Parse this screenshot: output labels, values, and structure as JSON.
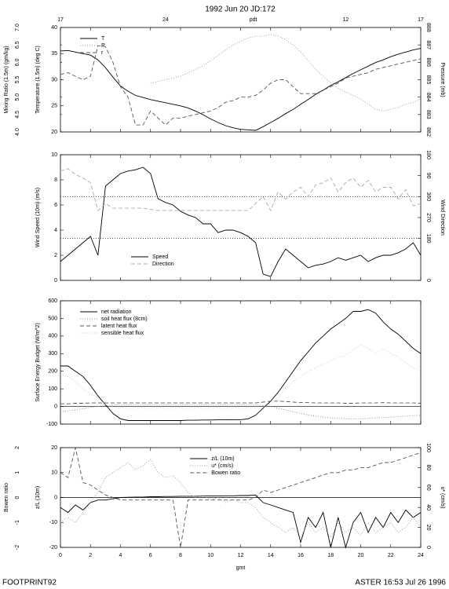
{
  "title": "1992 Jun 20 JD:172",
  "footer_left": "FOOTPRINT92",
  "footer_right": "ASTER 16:53 Jul 26 1996",
  "chart_data": [
    {
      "type": "line",
      "x": [
        0,
        0.5,
        1,
        1.5,
        2,
        2.5,
        3,
        3.5,
        4,
        4.5,
        5,
        5.5,
        6,
        6.5,
        7,
        7.5,
        8,
        8.5,
        9,
        9.5,
        10,
        10.5,
        11,
        11.5,
        12,
        12.5,
        13,
        13.5,
        14,
        14.5,
        15,
        15.5,
        16,
        16.5,
        17,
        17.5,
        18,
        18.5,
        19,
        19.5,
        20,
        20.5,
        21,
        21.5,
        22,
        22.5,
        23,
        23.5,
        24
      ],
      "xlim": [
        0,
        24
      ],
      "xticks": [
        0,
        2,
        4,
        6,
        8,
        10,
        12,
        14,
        16,
        18,
        20,
        22,
        24
      ],
      "x2label": "pdt",
      "x2ticks": [
        {
          "value": 0,
          "label": "17"
        },
        {
          "value": 7,
          "label": "24"
        },
        {
          "value": 19,
          "label": "12"
        },
        {
          "value": 24,
          "label": "17"
        }
      ],
      "ylabel": "Temperature (1.5m) (deg C)",
      "ylim": [
        20,
        40
      ],
      "yticks": [
        20,
        25,
        30,
        35,
        40
      ],
      "y3label": "Mixing Ratio (1.5m) (gm/kg)",
      "y3lim": [
        4,
        7
      ],
      "y3ticks": [
        {
          "value": 4,
          "label": "4.0"
        },
        4.5,
        {
          "value": 5,
          "label": "5.0"
        },
        5.5,
        {
          "value": 6,
          "label": "6.0"
        },
        6.5,
        {
          "value": 7,
          "label": "7.0"
        }
      ],
      "y2label": "Pressure (mb)",
      "y2lim": [
        882,
        888
      ],
      "y2ticks": [
        882,
        883,
        884,
        885,
        886,
        887,
        888
      ],
      "legend": "upper left",
      "series": [
        {
          "name": "T",
          "color": "#000000",
          "dash": "solid",
          "axis": "y",
          "values": [
            35.5,
            35.6,
            35.3,
            35.0,
            34.7,
            33.8,
            32.3,
            30.5,
            28.8,
            27.8,
            27.0,
            26.6,
            26.2,
            25.9,
            25.6,
            25.3,
            25.0,
            24.6,
            24.0,
            23.3,
            22.5,
            21.8,
            21.2,
            20.8,
            20.5,
            20.4,
            20.3,
            21.0,
            21.8,
            22.6,
            23.5,
            24.3,
            25.3,
            26.2,
            27.2,
            28.0,
            28.9,
            29.6,
            30.4,
            31.2,
            31.9,
            32.6,
            33.3,
            33.8,
            34.4,
            34.9,
            35.3,
            35.7,
            36.0
          ]
        },
        {
          "name": "P",
          "color": "#999999",
          "dash": "dotted",
          "axis": "y2",
          "values": [
            null,
            null,
            null,
            null,
            null,
            null,
            null,
            null,
            null,
            null,
            null,
            null,
            884.8,
            884.9,
            885.0,
            885.1,
            885.2,
            885.4,
            885.6,
            885.8,
            886.1,
            886.4,
            886.7,
            887.0,
            887.2,
            887.4,
            887.5,
            887.5,
            887.6,
            887.5,
            887.3,
            887.0,
            886.6,
            886.1,
            885.6,
            885.2,
            884.8,
            884.5,
            884.3,
            884.1,
            883.9,
            883.6,
            883.3,
            883.2,
            883.3,
            883.4,
            883.6,
            883.7,
            883.9
          ]
        },
        {
          "name": "r",
          "color": "#555555",
          "dash": "dashed",
          "axis": "y3",
          "values": [
            5.65,
            5.7,
            5.6,
            5.5,
            5.6,
            6.48,
            6.45,
            6.0,
            5.3,
            5.0,
            4.2,
            4.2,
            4.6,
            4.4,
            4.2,
            4.4,
            4.4,
            4.45,
            4.5,
            4.55,
            4.6,
            4.7,
            4.85,
            4.9,
            5.0,
            5.0,
            5.05,
            5.2,
            5.4,
            5.5,
            5.5,
            5.3,
            5.1,
            5.1,
            5.1,
            5.2,
            5.3,
            5.4,
            5.55,
            5.6,
            5.65,
            5.7,
            5.8,
            5.85,
            5.9,
            5.95,
            6.0,
            6.05,
            6.1
          ]
        }
      ]
    },
    {
      "type": "line",
      "x": [
        0,
        0.5,
        1,
        1.5,
        2,
        2.5,
        3,
        3.5,
        4,
        4.5,
        5,
        5.5,
        6,
        6.5,
        7,
        7.5,
        8,
        8.5,
        9,
        9.5,
        10,
        10.5,
        11,
        11.5,
        12,
        12.5,
        13,
        13.5,
        14,
        14.5,
        15,
        15.5,
        16,
        16.5,
        17,
        17.5,
        18,
        18.5,
        19,
        19.5,
        20,
        20.5,
        21,
        21.5,
        22,
        22.5,
        23,
        23.5,
        24
      ],
      "xlim": [
        0,
        24
      ],
      "xticks": [
        0,
        2,
        4,
        6,
        8,
        10,
        12,
        14,
        16,
        18,
        20,
        22,
        24
      ],
      "ylabel": "Wind Speed (10m) (m/s)",
      "ylim": [
        0,
        10
      ],
      "yticks": [
        0,
        2,
        4,
        6,
        8,
        10
      ],
      "y2label": "Wind Direction",
      "y2lim": [
        0,
        540
      ],
      "y2ticks": [
        0,
        180,
        270,
        360,
        {
          "value": 450,
          "label": "90"
        },
        {
          "value": 540,
          "label": "180"
        }
      ],
      "hlines": [
        {
          "axis": "y2",
          "value": 180,
          "dash": "dotted"
        },
        {
          "axis": "y2",
          "value": 360,
          "dash": "dotted"
        }
      ],
      "legend": "lower left",
      "series": [
        {
          "name": "Speed",
          "color": "#000000",
          "dash": "solid",
          "axis": "y",
          "values": [
            1.5,
            2.0,
            2.5,
            3.0,
            3.5,
            2.0,
            7.5,
            8.0,
            8.5,
            8.7,
            8.8,
            9.0,
            8.5,
            6.5,
            6.2,
            6.0,
            5.5,
            5.2,
            5.0,
            4.5,
            4.5,
            3.8,
            4.0,
            4.0,
            3.8,
            3.5,
            3.0,
            0.5,
            0.3,
            1.5,
            2.5,
            2.0,
            1.5,
            1.0,
            1.2,
            1.3,
            1.5,
            1.8,
            1.6,
            1.8,
            2.0,
            1.5,
            1.8,
            2.0,
            2.0,
            2.2,
            2.5,
            3.0,
            2.0
          ]
        },
        {
          "name": "Direction",
          "color": "#aaaaaa",
          "dash": "dashed",
          "axis": "y2",
          "values": [
            470,
            480,
            455,
            440,
            420,
            300,
            330,
            310,
            310,
            310,
            310,
            310,
            305,
            300,
            300,
            300,
            300,
            300,
            300,
            300,
            300,
            300,
            300,
            300,
            300,
            300,
            330,
            360,
            300,
            380,
            350,
            380,
            400,
            360,
            410,
            420,
            440,
            380,
            420,
            440,
            400,
            430,
            380,
            400,
            400,
            350,
            390,
            320,
            330
          ]
        }
      ]
    },
    {
      "type": "line",
      "x": [
        0,
        0.5,
        1,
        1.5,
        2,
        2.5,
        3,
        3.5,
        4,
        4.5,
        5,
        5.5,
        6,
        6.5,
        7,
        7.5,
        8,
        8.5,
        9,
        9.5,
        10,
        10.5,
        11,
        11.5,
        12,
        12.5,
        13,
        13.5,
        14,
        14.5,
        15,
        15.5,
        16,
        16.5,
        17,
        17.5,
        18,
        18.5,
        19,
        19.5,
        20,
        20.5,
        21,
        21.5,
        22,
        22.5,
        23,
        23.5,
        24
      ],
      "xlim": [
        0,
        24
      ],
      "xticks": [
        0,
        2,
        4,
        6,
        8,
        10,
        12,
        14,
        16,
        18,
        20,
        22,
        24
      ],
      "ylabel": "Surface Energy Budget (W/m^2)",
      "ylim": [
        -100,
        600
      ],
      "yticks": [
        -100,
        0,
        100,
        200,
        300,
        400,
        500,
        600
      ],
      "hlines": [
        {
          "axis": "y",
          "value": 0,
          "dash": "solid"
        }
      ],
      "legend": "upper left",
      "series": [
        {
          "name": "net radiation",
          "color": "#000000",
          "dash": "solid",
          "axis": "y",
          "values": [
            230,
            230,
            200,
            170,
            120,
            60,
            10,
            -40,
            -70,
            -80,
            -80,
            -80,
            -80,
            -80,
            -80,
            -80,
            -80,
            -78,
            -78,
            -77,
            -77,
            -76,
            -76,
            -75,
            -75,
            -70,
            -50,
            -10,
            30,
            80,
            140,
            200,
            260,
            310,
            360,
            400,
            440,
            470,
            500,
            540,
            540,
            550,
            530,
            480,
            440,
            410,
            370,
            330,
            300
          ]
        },
        {
          "name": "soil heat flux (8cm)",
          "color": "#888888",
          "dash": "dotted",
          "axis": "y",
          "values": [
            -30,
            -25,
            -20,
            -12,
            -5,
            0,
            5,
            8,
            10,
            10,
            10,
            10,
            10,
            10,
            10,
            10,
            10,
            10,
            10,
            10,
            10,
            10,
            10,
            10,
            10,
            10,
            10,
            5,
            0,
            -10,
            -20,
            -30,
            -40,
            -48,
            -55,
            -60,
            -65,
            -68,
            -70,
            -70,
            -70,
            -68,
            -65,
            -62,
            -60,
            -58,
            -55,
            -52,
            -50
          ]
        },
        {
          "name": "latent heat flux",
          "color": "#555555",
          "dash": "dashed",
          "axis": "y",
          "values": [
            15,
            15,
            18,
            18,
            20,
            20,
            20,
            20,
            20,
            20,
            20,
            20,
            20,
            20,
            20,
            20,
            20,
            20,
            20,
            20,
            20,
            20,
            20,
            20,
            20,
            20,
            20,
            25,
            30,
            30,
            28,
            25,
            22,
            22,
            20,
            20,
            20,
            20,
            18,
            18,
            20,
            20,
            20,
            22,
            20,
            20,
            20,
            20,
            18
          ]
        },
        {
          "name": "sensible heat flux",
          "color": "#cccccc",
          "dash": "dotted",
          "axis": "y",
          "values": [
            180,
            170,
            140,
            100,
            70,
            50,
            10,
            -5,
            -10,
            -10,
            -10,
            -10,
            -10,
            -10,
            -10,
            -10,
            -10,
            -10,
            -10,
            -10,
            -10,
            -10,
            -10,
            -10,
            -10,
            -10,
            -10,
            -5,
            10,
            50,
            100,
            140,
            170,
            200,
            220,
            240,
            260,
            280,
            290,
            320,
            350,
            330,
            300,
            330,
            300,
            280,
            250,
            220,
            200
          ]
        }
      ]
    },
    {
      "type": "line",
      "x": [
        0,
        0.5,
        1,
        1.5,
        2,
        2.5,
        3,
        3.5,
        4,
        4.5,
        5,
        5.5,
        6,
        6.5,
        7,
        7.5,
        8,
        8.5,
        9,
        9.5,
        10,
        10.5,
        11,
        11.5,
        12,
        12.5,
        13,
        13.5,
        14,
        14.5,
        15,
        15.5,
        16,
        16.5,
        17,
        17.5,
        18,
        18.5,
        19,
        19.5,
        20,
        20.5,
        21,
        21.5,
        22,
        22.5,
        23,
        23.5,
        24
      ],
      "xlim": [
        0,
        24
      ],
      "xticks": [
        0,
        2,
        4,
        6,
        8,
        10,
        12,
        14,
        16,
        18,
        20,
        22,
        24
      ],
      "xticklabels": true,
      "xlabel": "gmt",
      "ylabel": "z/L (10m)",
      "ylim": [
        -20,
        20
      ],
      "yticks": [
        -20,
        -10,
        0,
        10,
        20
      ],
      "y3label": "Bowen ratio",
      "y3lim": [
        -2,
        2
      ],
      "y3ticks": [
        -2,
        -1,
        0,
        1,
        2
      ],
      "y2label": "u* (cm/s)",
      "y2lim": [
        0,
        100
      ],
      "y2ticks": [
        0,
        20,
        40,
        60,
        80,
        100
      ],
      "hlines": [
        {
          "axis": "y",
          "value": 0,
          "dash": "solid"
        }
      ],
      "legend": "upper center",
      "series": [
        {
          "name": "z/L (10m)",
          "color": "#000000",
          "dash": "solid",
          "axis": "y",
          "values": [
            -4,
            -6,
            -3,
            -5,
            -2,
            -1,
            -1,
            -0.5,
            0.0,
            0.1,
            0.2,
            0.2,
            0.3,
            0.3,
            0.4,
            0.4,
            0.5,
            0.5,
            0.5,
            0.6,
            0.6,
            0.6,
            0.7,
            0.7,
            0.8,
            0.8,
            1,
            -2,
            -3,
            -4,
            -5,
            -6,
            -18,
            -8,
            -12,
            -6,
            -20,
            -8,
            -20,
            -10,
            -6,
            -14,
            -8,
            -12,
            -6,
            -10,
            -5,
            -8,
            -6
          ]
        },
        {
          "name": "u* (cm/s)",
          "color": "#999999",
          "dash": "dotted",
          "axis": "y2",
          "values": [
            25,
            30,
            25,
            35,
            45,
            55,
            70,
            75,
            80,
            85,
            78,
            82,
            88,
            75,
            70,
            72,
            65,
            55,
            50,
            52,
            48,
            50,
            45,
            48,
            45,
            45,
            40,
            30,
            25,
            20,
            15,
            20,
            10,
            25,
            15,
            20,
            10,
            25,
            15,
            20,
            12,
            25,
            15,
            20,
            25,
            15,
            20,
            30,
            20
          ]
        },
        {
          "name": "Bowen ratio",
          "color": "#555555",
          "dash": "dashed",
          "axis": "y3",
          "values": [
            1.0,
            0.8,
            2.0,
            0.6,
            0.5,
            0.3,
            0.1,
            0.0,
            -0.1,
            -0.1,
            -0.1,
            -0.1,
            -0.1,
            -0.1,
            -0.1,
            -0.1,
            -2.0,
            -0.1,
            -0.1,
            -0.1,
            -0.1,
            -0.1,
            -0.1,
            -0.1,
            -0.1,
            -0.1,
            0.0,
            0.3,
            0.2,
            0.3,
            0.4,
            0.5,
            0.6,
            0.7,
            0.8,
            0.9,
            1.0,
            1.0,
            1.1,
            1.1,
            1.2,
            1.2,
            1.3,
            1.4,
            1.4,
            1.5,
            1.6,
            1.7,
            1.8
          ]
        }
      ]
    }
  ]
}
